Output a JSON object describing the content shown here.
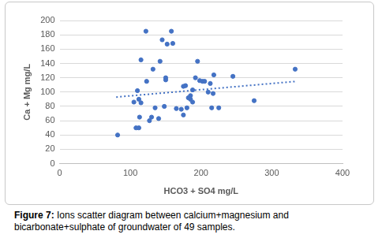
{
  "chart_data": {
    "type": "scatter",
    "caption": "Figure 7: Ions scatter diagram between calcium+magnesium and bicarbonate+sulphate of groundwater of 49 samples.",
    "x_label": "HCO3 + SO4 mg/L",
    "y_label": "Ca + Mg mg/L",
    "series": [
      {
        "type": "scatter",
        "color": "#4472c4",
        "marker": "circle",
        "x": [
          82,
          105,
          108,
          110,
          112,
          112,
          113,
          115,
          115,
          122,
          123,
          127,
          130,
          132,
          135,
          140,
          142,
          145,
          148,
          150,
          150,
          152,
          158,
          160,
          165,
          172,
          175,
          175,
          178,
          180,
          182,
          185,
          185,
          188,
          188,
          192,
          195,
          198,
          202,
          205,
          210,
          213,
          215,
          217,
          218,
          225,
          245,
          275,
          333
        ],
        "values": [
          40,
          86,
          50,
          102,
          50,
          90,
          65,
          85,
          145,
          185,
          115,
          60,
          65,
          132,
          78,
          63,
          143,
          173,
          80,
          120,
          117,
          167,
          185,
          168,
          77,
          76,
          68,
          108,
          109,
          78,
          92,
          90,
          95,
          86,
          103,
          120,
          143,
          116,
          115,
          115,
          100,
          112,
          78,
          98,
          124,
          78,
          122,
          88,
          132
        ]
      },
      {
        "type": "line",
        "color": "#4472c4",
        "line_style": "dotted",
        "x": [
          80,
          335
        ],
        "values": [
          93,
          115
        ]
      }
    ],
    "xlim": [
      0,
      400
    ],
    "xticks": [
      0,
      100,
      200,
      300,
      400
    ],
    "ylim": [
      0,
      200
    ],
    "yticks": [
      0,
      20,
      40,
      60,
      80,
      100,
      120,
      140,
      160,
      180,
      200
    ],
    "grid": "y"
  }
}
